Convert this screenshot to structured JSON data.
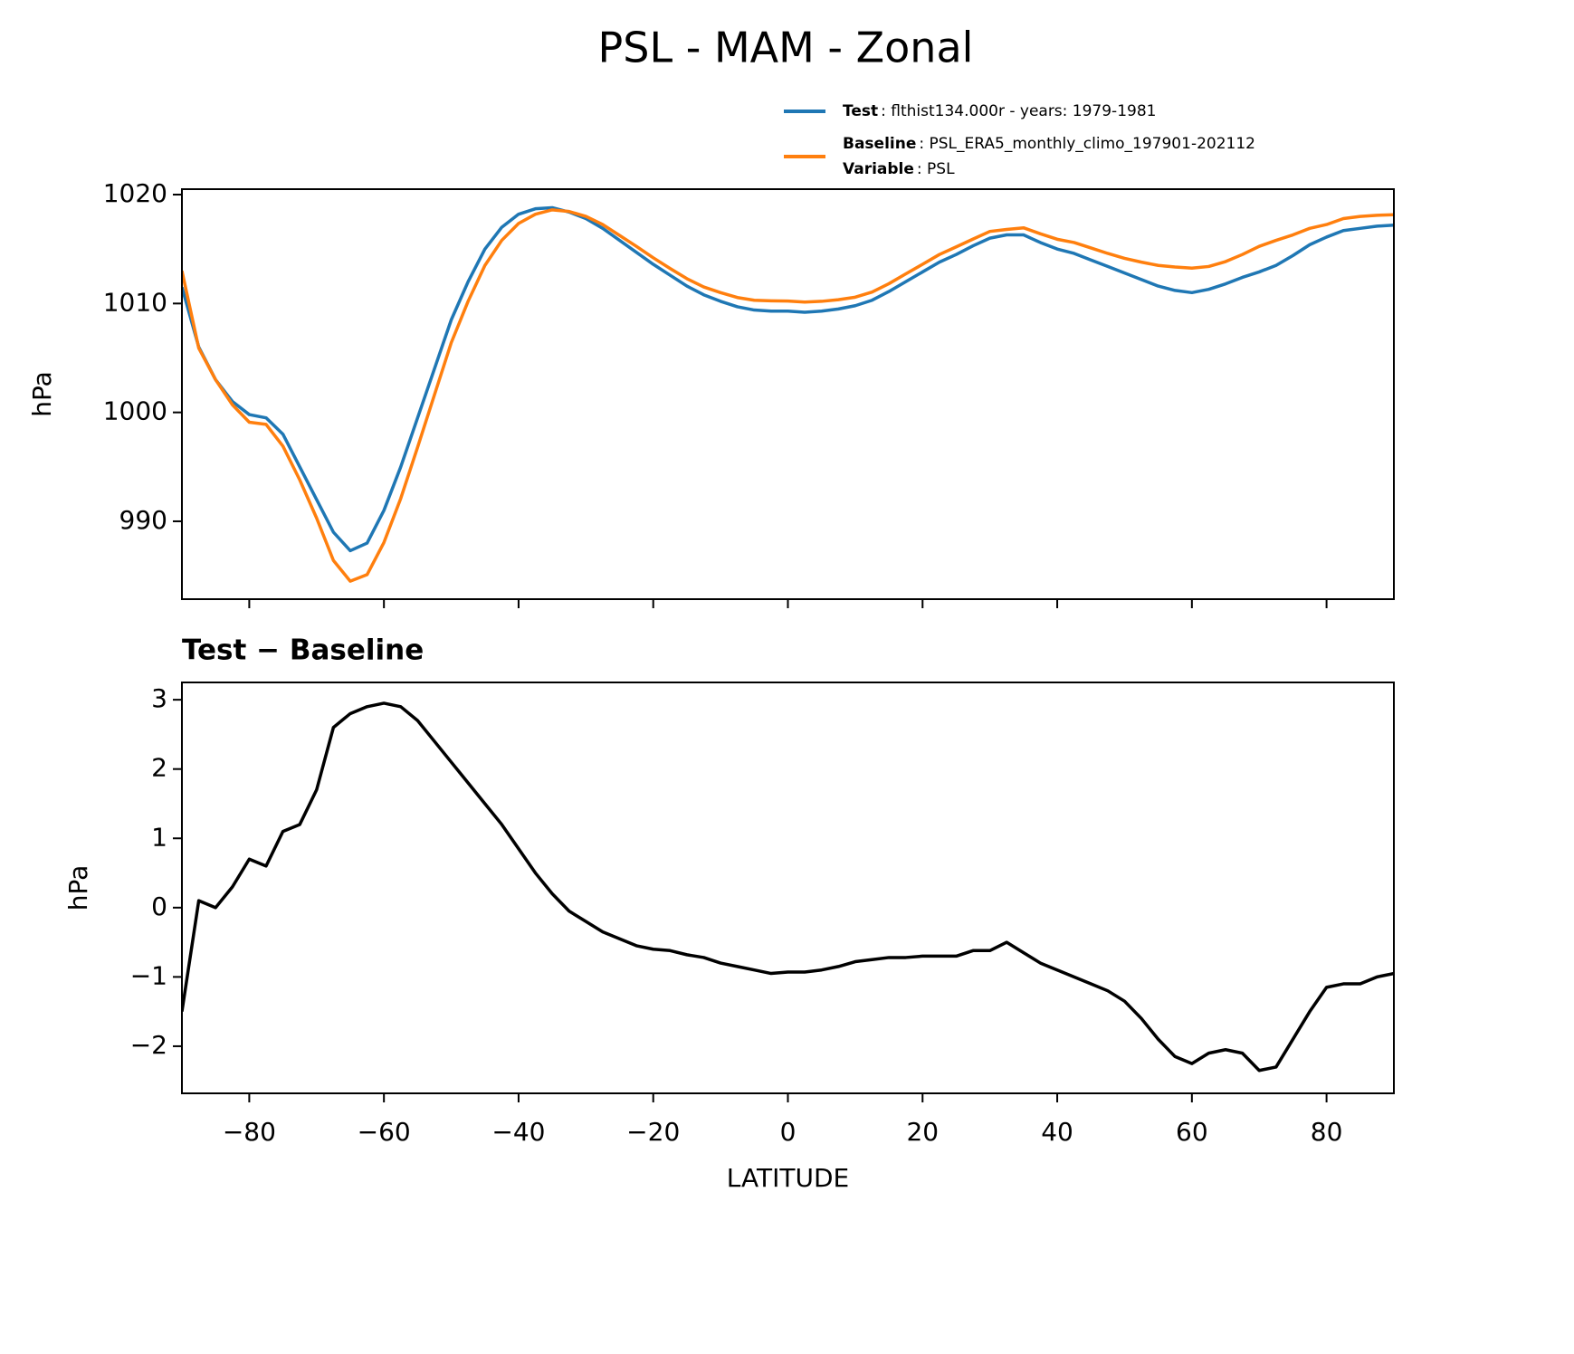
{
  "title": "PSL - MAM - Zonal",
  "chart_data": [
    {
      "type": "line",
      "ylabel": "hPa",
      "x": [
        -90,
        -87.5,
        -85,
        -82.5,
        -80,
        -77.5,
        -75,
        -72.5,
        -70,
        -67.5,
        -65,
        -62.5,
        -60,
        -57.5,
        -55,
        -52.5,
        -50,
        -47.5,
        -45,
        -42.5,
        -40,
        -37.5,
        -35,
        -32.5,
        -30,
        -27.5,
        -25,
        -22.5,
        -20,
        -17.5,
        -15,
        -12.5,
        -10,
        -7.5,
        -5,
        -2.5,
        0,
        2.5,
        5,
        7.5,
        10,
        12.5,
        15,
        17.5,
        20,
        22.5,
        25,
        27.5,
        30,
        32.5,
        35,
        37.5,
        40,
        42.5,
        45,
        47.5,
        50,
        52.5,
        55,
        57.5,
        60,
        62.5,
        65,
        67.5,
        70,
        72.5,
        75,
        77.5,
        80,
        82.5,
        85,
        87.5,
        90
      ],
      "series": [
        {
          "name": "Test",
          "detail": ": flthist134.000r - years: 1979-1981",
          "color": "#1f77b4",
          "values": [
            1011.5,
            1006,
            1003,
            1001,
            999.8,
            999.5,
            998,
            995,
            992,
            989,
            987.3,
            988,
            991,
            995,
            999.5,
            1004,
            1008.5,
            1012,
            1015,
            1017,
            1018.2,
            1018.7,
            1018.8,
            1018.4,
            1017.8,
            1016.9,
            1015.8,
            1014.7,
            1013.6,
            1012.6,
            1011.6,
            1010.8,
            1010.2,
            1009.7,
            1009.4,
            1009.3,
            1009.3,
            1009.2,
            1009.3,
            1009.5,
            1009.8,
            1010.3,
            1011.1,
            1012,
            1012.9,
            1013.8,
            1014.5,
            1015.3,
            1016,
            1016.3,
            1016.3,
            1015.6,
            1015,
            1014.6,
            1014,
            1013.4,
            1012.8,
            1012.2,
            1011.6,
            1011.2,
            1011,
            1011.3,
            1011.8,
            1012.4,
            1012.9,
            1013.5,
            1014.4,
            1015.4,
            1016.1,
            1016.7,
            1016.9,
            1017.1,
            1017.2
          ]
        },
        {
          "name": "Baseline",
          "detail": ": PSL_ERA5_monthly_climo_197901-202112",
          "color": "#ff7f0e",
          "values": [
            1013,
            1005.9,
            1003,
            1000.7,
            999.1,
            998.9,
            996.9,
            993.8,
            990.3,
            986.4,
            984.5,
            985.1,
            988.05,
            992.1,
            996.8,
            1001.6,
            1006.4,
            1010.2,
            1013.5,
            1015.8,
            1017.35,
            1018.2,
            1018.6,
            1018.45,
            1018,
            1017.25,
            1016.25,
            1015.25,
            1014.2,
            1013.22,
            1012.28,
            1011.52,
            1011,
            1010.55,
            1010.3,
            1010.25,
            1010.23,
            1010.13,
            1010.2,
            1010.35,
            1010.58,
            1011.05,
            1011.82,
            1012.72,
            1013.6,
            1014.5,
            1015.2,
            1015.92,
            1016.62,
            1016.8,
            1016.95,
            1016.4,
            1015.9,
            1015.6,
            1015.1,
            1014.6,
            1014.15,
            1013.8,
            1013.5,
            1013.35,
            1013.25,
            1013.4,
            1013.85,
            1014.5,
            1015.25,
            1015.8,
            1016.3,
            1016.9,
            1017.25,
            1017.8,
            1018,
            1018.1,
            1018.15
          ]
        }
      ],
      "legend_note": {
        "name": "Variable",
        "detail": ": PSL"
      },
      "xlim": [
        -90,
        90
      ],
      "xticks": [
        -80,
        -60,
        -40,
        -20,
        0,
        20,
        40,
        60,
        80
      ],
      "xtick_labels": false,
      "ylim": [
        982.85,
        1020.5
      ],
      "yticks": [
        990,
        1000,
        1010,
        1020
      ]
    },
    {
      "type": "line",
      "title": "Test − Baseline",
      "xlabel": "LATITUDE",
      "ylabel": "hPa",
      "x": [
        -90,
        -87.5,
        -85,
        -82.5,
        -80,
        -77.5,
        -75,
        -72.5,
        -70,
        -67.5,
        -65,
        -62.5,
        -60,
        -57.5,
        -55,
        -52.5,
        -50,
        -47.5,
        -45,
        -42.5,
        -40,
        -37.5,
        -35,
        -32.5,
        -30,
        -27.5,
        -25,
        -22.5,
        -20,
        -17.5,
        -15,
        -12.5,
        -10,
        -7.5,
        -5,
        -2.5,
        0,
        2.5,
        5,
        7.5,
        10,
        12.5,
        15,
        17.5,
        20,
        22.5,
        25,
        27.5,
        30,
        32.5,
        35,
        37.5,
        40,
        42.5,
        45,
        47.5,
        50,
        52.5,
        55,
        57.5,
        60,
        62.5,
        65,
        67.5,
        70,
        72.5,
        75,
        77.5,
        80,
        82.5,
        85,
        87.5,
        90
      ],
      "series": [
        {
          "name": "Test − Baseline",
          "color": "#000000",
          "values": [
            -1.5,
            0.1,
            0,
            0.3,
            0.7,
            0.6,
            1.1,
            1.2,
            1.7,
            2.6,
            2.8,
            2.9,
            2.95,
            2.9,
            2.7,
            2.4,
            2.1,
            1.8,
            1.5,
            1.2,
            0.85,
            0.5,
            0.2,
            -0.05,
            -0.2,
            -0.35,
            -0.45,
            -0.55,
            -0.6,
            -0.62,
            -0.68,
            -0.72,
            -0.8,
            -0.85,
            -0.9,
            -0.95,
            -0.93,
            -0.93,
            -0.9,
            -0.85,
            -0.78,
            -0.75,
            -0.72,
            -0.72,
            -0.7,
            -0.7,
            -0.7,
            -0.62,
            -0.62,
            -0.5,
            -0.65,
            -0.8,
            -0.9,
            -1,
            -1.1,
            -1.2,
            -1.35,
            -1.6,
            -1.9,
            -2.15,
            -2.25,
            -2.1,
            -2.05,
            -2.1,
            -2.35,
            -2.3,
            -1.9,
            -1.5,
            -1.15,
            -1.1,
            -1.1,
            -1,
            -0.95
          ]
        }
      ],
      "xlim": [
        -90,
        90
      ],
      "xticks": [
        {
          "value": -80,
          "label": "−80"
        },
        {
          "value": -60,
          "label": "−60"
        },
        {
          "value": -40,
          "label": "−40"
        },
        {
          "value": -20,
          "label": "−20"
        },
        0,
        20,
        40,
        60,
        80
      ],
      "xtick_labels": true,
      "ylim": [
        -2.68,
        3.25
      ],
      "yticks": [
        {
          "value": -2,
          "label": "−2"
        },
        {
          "value": -1,
          "label": "−1"
        },
        0,
        1,
        2,
        3
      ]
    }
  ]
}
